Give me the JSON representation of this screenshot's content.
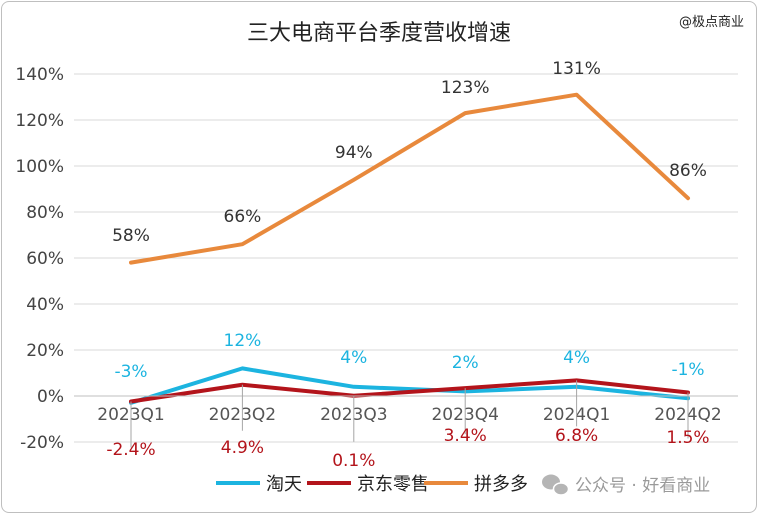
{
  "chart_data": {
    "type": "line",
    "title": "三大电商平台季度营收增速",
    "source_tag": "@极点商业",
    "watermark": "公众号 · 好看商业",
    "categories": [
      "2023Q1",
      "2023Q2",
      "2023Q3",
      "2023Q4",
      "2024Q1",
      "2024Q2"
    ],
    "ylim": [
      -20,
      140
    ],
    "yticks": [
      "-20%",
      "0%",
      "20%",
      "40%",
      "60%",
      "80%",
      "100%",
      "120%",
      "140%"
    ],
    "grid": true,
    "legend_position": "bottom",
    "series": [
      {
        "name": "淘天",
        "color": "#1cb4e0",
        "values": [
          -3,
          12,
          4,
          2,
          4,
          -1
        ],
        "labels": [
          "-3%",
          "12%",
          "4%",
          "2%",
          "4%",
          "-1%"
        ],
        "label_color": "#1cb4e0"
      },
      {
        "name": "京东零售",
        "color": "#b3141b",
        "values": [
          -2.4,
          4.9,
          0.1,
          3.4,
          6.8,
          1.5
        ],
        "labels": [
          "-2.4%",
          "4.9%",
          "0.1%",
          "3.4%",
          "6.8%",
          "1.5%"
        ],
        "label_color": "#b3141b"
      },
      {
        "name": "拼多多",
        "color": "#e8893c",
        "values": [
          58,
          66,
          94,
          123,
          131,
          86
        ],
        "labels": [
          "58%",
          "66%",
          "94%",
          "123%",
          "131%",
          "86%"
        ],
        "label_color": "#333333"
      }
    ]
  }
}
